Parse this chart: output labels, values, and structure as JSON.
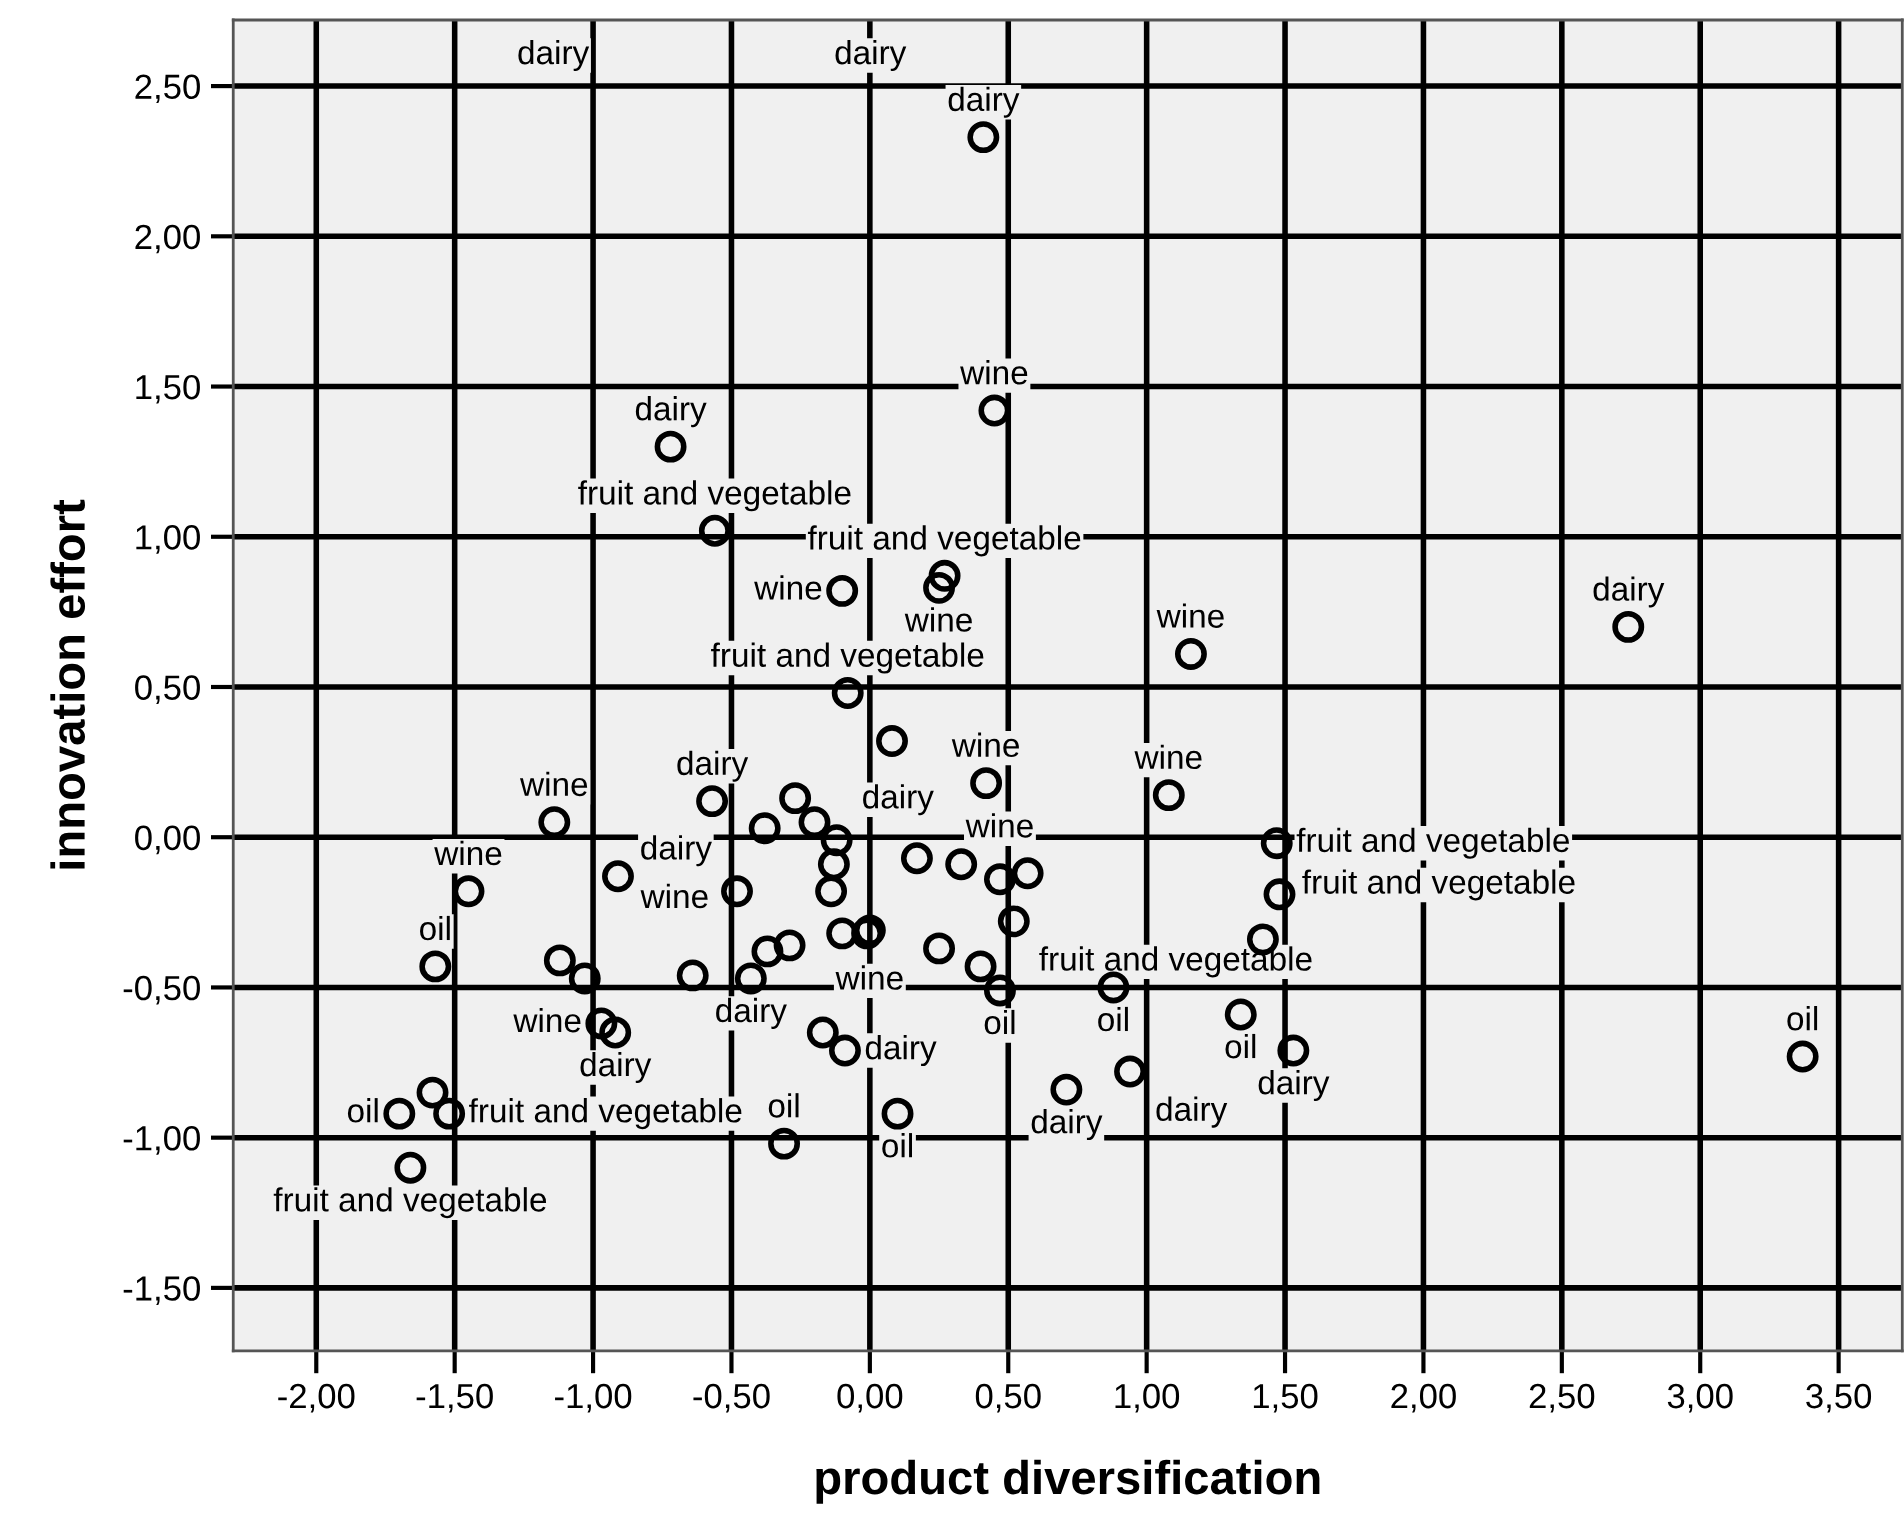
{
  "chart_data": {
    "type": "scatter",
    "xlabel": "product diversification",
    "ylabel": "innovation effort",
    "xlim": [
      -2.3,
      3.73
    ],
    "ylim": [
      -1.71,
      2.72
    ],
    "xticks": [
      {
        "value": -2.0,
        "label": "-2,00"
      },
      {
        "value": -1.5,
        "label": "-1,50"
      },
      {
        "value": -1.0,
        "label": "-1,00"
      },
      {
        "value": -0.5,
        "label": "-0,50"
      },
      {
        "value": 0.0,
        "label": "0,00"
      },
      {
        "value": 0.5,
        "label": "0,50"
      },
      {
        "value": 1.0,
        "label": "1,00"
      },
      {
        "value": 1.5,
        "label": "1,50"
      },
      {
        "value": 2.0,
        "label": "2,00"
      },
      {
        "value": 2.5,
        "label": "2,50"
      },
      {
        "value": 3.0,
        "label": "3,00"
      },
      {
        "value": 3.5,
        "label": "3,50"
      }
    ],
    "yticks": [
      {
        "value": -1.5,
        "label": "-1,50"
      },
      {
        "value": -1.0,
        "label": "-1,00"
      },
      {
        "value": -0.5,
        "label": "-0,50"
      },
      {
        "value": 0.0,
        "label": "0,00"
      },
      {
        "value": 0.5,
        "label": "0,50"
      },
      {
        "value": 1.0,
        "label": "1,00"
      },
      {
        "value": 1.5,
        "label": "1,50"
      },
      {
        "value": 2.0,
        "label": "2,00"
      },
      {
        "value": 2.5,
        "label": "2,50"
      }
    ],
    "grid": true,
    "marker": "circle",
    "series": [
      {
        "color": "#000000",
        "x": [
          0.41,
          0.45,
          -0.72,
          -0.56,
          -0.1,
          0.27,
          0.25,
          -0.08,
          1.16,
          2.74,
          -0.57,
          -0.27,
          -0.2,
          -0.38,
          -0.12,
          -0.13,
          -0.14,
          -0.1,
          -1.14,
          -1.45,
          -0.91,
          -0.48,
          -1.57,
          -1.12,
          -1.03,
          -0.64,
          -0.43,
          -0.37,
          -0.29,
          -0.97,
          -0.92,
          -0.17,
          -0.09,
          -1.58,
          -1.7,
          -1.52,
          -1.66,
          -0.31,
          0.08,
          0.42,
          1.08,
          0.17,
          0.33,
          0.47,
          0.57,
          0.52,
          0.0,
          -0.01,
          0.25,
          0.4,
          0.47,
          0.88,
          1.34,
          0.94,
          0.71,
          0.1,
          1.47,
          1.48,
          1.42,
          1.53,
          3.37
        ],
        "values": [
          2.33,
          1.42,
          1.3,
          1.02,
          0.82,
          0.87,
          0.83,
          0.48,
          0.61,
          0.7,
          0.12,
          0.13,
          0.05,
          0.03,
          -0.01,
          -0.09,
          -0.18,
          -0.32,
          0.05,
          -0.18,
          -0.13,
          -0.18,
          -0.43,
          -0.41,
          -0.47,
          -0.46,
          -0.47,
          -0.38,
          -0.36,
          -0.62,
          -0.65,
          -0.65,
          -0.71,
          -0.85,
          -0.92,
          -0.92,
          -1.1,
          -1.02,
          0.32,
          0.18,
          0.14,
          -0.07,
          -0.09,
          -0.14,
          -0.12,
          -0.28,
          -0.31,
          -0.32,
          -0.37,
          -0.43,
          -0.51,
          -0.5,
          -0.59,
          -0.78,
          -0.84,
          -0.92,
          -0.02,
          -0.19,
          -0.34,
          -0.71,
          -0.73
        ]
      }
    ],
    "annotations": [
      "dairy",
      "dairy",
      {
        "text": "dairy",
        "x": 0.41,
        "y": 2.33
      },
      {
        "text": "wine",
        "x": 0.45,
        "y": 1.42
      },
      {
        "text": "dairy",
        "x": -0.72,
        "y": 1.3
      },
      {
        "text": "fruit and vegetable",
        "x": 0.27,
        "y": 0.87
      },
      {
        "text": "fruit and vegetable",
        "x": -0.56,
        "y": 1.02
      },
      {
        "text": "dairy",
        "x": 2.74,
        "y": 0.7
      },
      {
        "text": "wine",
        "x": 1.16,
        "y": 0.61
      },
      {
        "text": "fruit and vegetable",
        "x": -0.08,
        "y": 0.48
      },
      {
        "text": "wine",
        "x": -0.1,
        "y": 0.82
      },
      {
        "text": "wine",
        "x": 0.25,
        "y": 0.83
      },
      {
        "text": "wine",
        "x": 0.42,
        "y": 0.18
      },
      {
        "text": "dairy",
        "x": -0.57,
        "y": 0.12
      },
      {
        "text": "wine",
        "x": -1.14,
        "y": 0.05
      },
      {
        "text": "fruit and vegetable",
        "x": 1.47,
        "y": -0.02
      },
      {
        "text": "wine",
        "x": -0.38,
        "y": 0.03
      },
      {
        "text": "dairy",
        "x": -0.12,
        "y": -0.01
      },
      {
        "text": "wine",
        "x": -1.45,
        "y": -0.18
      },
      {
        "text": "wine",
        "x": 0.47,
        "y": -0.14
      },
      {
        "text": "wine",
        "x": 1.08,
        "y": 0.14
      },
      {
        "text": "dairy",
        "x": -0.48,
        "y": -0.18
      },
      {
        "text": "wine",
        "x": 0.0,
        "y": -0.31
      },
      {
        "text": "oil",
        "x": -1.57,
        "y": -0.43
      },
      {
        "text": "fruit and vegetable",
        "x": 0.52,
        "y": -0.28
      },
      {
        "text": "dairy",
        "x": -0.43,
        "y": -0.47
      },
      {
        "text": "fruit and vegetable",
        "x": 1.42,
        "y": -0.34
      },
      {
        "text": "oil",
        "x": 0.88,
        "y": -0.5
      },
      {
        "text": "oil",
        "x": 3.37,
        "y": -0.73
      },
      {
        "text": "wine",
        "x": -0.97,
        "y": -0.62
      },
      {
        "text": "dairy",
        "x": -0.92,
        "y": -0.65
      },
      {
        "text": "dairy",
        "x": -0.09,
        "y": -0.71
      },
      {
        "text": "oil",
        "x": 0.47,
        "y": -0.51
      },
      {
        "text": "oil",
        "x": 1.34,
        "y": -0.59
      },
      {
        "text": "dairy",
        "x": 1.53,
        "y": -0.71
      },
      {
        "text": "oil",
        "x": -1.7,
        "y": -0.92
      },
      {
        "text": "fruit and vegetable",
        "x": -1.52,
        "y": -0.92
      },
      {
        "text": "dairy",
        "x": 0.71,
        "y": -0.84
      },
      {
        "text": "dairy",
        "x": 0.94,
        "y": -0.78
      },
      {
        "text": "oil",
        "x": 0.1,
        "y": -0.92
      },
      {
        "text": "oil",
        "x": -0.31,
        "y": -1.02
      },
      {
        "text": "fruit and vegetable",
        "x": -1.66,
        "y": -1.1
      }
    ]
  }
}
